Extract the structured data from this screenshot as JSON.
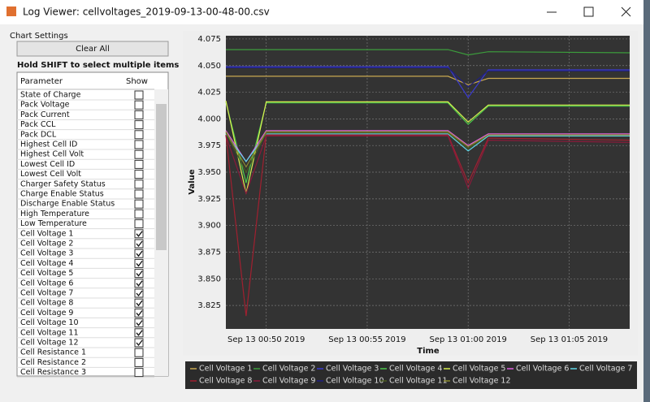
{
  "window": {
    "title": "Log Viewer: cellvoltages_2019-09-13-00-48-00.csv"
  },
  "settings": {
    "heading": "Chart Settings",
    "button": "Clear All",
    "hint": "Hold SHIFT to select multiple items",
    "columns": [
      "Parameter",
      "Show"
    ],
    "rows": [
      {
        "name": "State of Charge",
        "checked": false
      },
      {
        "name": "Pack Voltage",
        "checked": false
      },
      {
        "name": "Pack Current",
        "checked": false
      },
      {
        "name": "Pack CCL",
        "checked": false
      },
      {
        "name": "Pack DCL",
        "checked": false
      },
      {
        "name": "Highest Cell ID",
        "checked": false
      },
      {
        "name": "Highest Cell Volt",
        "checked": false
      },
      {
        "name": "Lowest Cell ID",
        "checked": false
      },
      {
        "name": "Lowest Cell Volt",
        "checked": false
      },
      {
        "name": "Charger Safety Status",
        "checked": false
      },
      {
        "name": "Charge Enable Status",
        "checked": false
      },
      {
        "name": "Discharge Enable Status",
        "checked": false
      },
      {
        "name": "High Temperature",
        "checked": false
      },
      {
        "name": "Low Temperature",
        "checked": false
      },
      {
        "name": "Cell Voltage 1",
        "checked": true
      },
      {
        "name": "Cell Voltage 2",
        "checked": true
      },
      {
        "name": "Cell Voltage 3",
        "checked": true
      },
      {
        "name": "Cell Voltage 4",
        "checked": true
      },
      {
        "name": "Cell Voltage 5",
        "checked": true
      },
      {
        "name": "Cell Voltage 6",
        "checked": true
      },
      {
        "name": "Cell Voltage 7",
        "checked": true
      },
      {
        "name": "Cell Voltage 8",
        "checked": true
      },
      {
        "name": "Cell Voltage 9",
        "checked": true
      },
      {
        "name": "Cell Voltage 10",
        "checked": true
      },
      {
        "name": "Cell Voltage 11",
        "checked": true
      },
      {
        "name": "Cell Voltage 12",
        "checked": true
      },
      {
        "name": "Cell Resistance 1",
        "checked": false
      },
      {
        "name": "Cell Resistance 2",
        "checked": false
      },
      {
        "name": "Cell Resistance 3",
        "checked": false
      }
    ]
  },
  "chart_data": {
    "type": "line",
    "x_label": "Time",
    "y_label": "Value",
    "x": [
      "2019-09-13 00:48",
      "2019-09-13 00:49",
      "2019-09-13 00:50",
      "2019-09-13 00:59",
      "2019-09-13 01:00",
      "2019-09-13 01:01",
      "2019-09-13 01:08"
    ],
    "xlim": [
      "2019-09-13 00:48",
      "2019-09-13 01:08"
    ],
    "xticks": [
      {
        "value": "2019-09-13 00:50",
        "label": "Sep 13 00:50 2019"
      },
      {
        "value": "2019-09-13 00:55",
        "label": "Sep 13 00:55 2019"
      },
      {
        "value": "2019-09-13 01:00",
        "label": "Sep 13 01:00 2019"
      },
      {
        "value": "2019-09-13 01:05",
        "label": "Sep 13 01:05 2019"
      }
    ],
    "ylim": [
      3.803,
      4.078
    ],
    "yticks": [
      3.825,
      {
        "value": 3.85,
        "label": "3.850"
      },
      3.875,
      {
        "value": 3.9,
        "label": "3.900"
      },
      3.925,
      {
        "value": 3.95,
        "label": "3.950"
      },
      3.975,
      {
        "value": 4.0,
        "label": "4.000"
      },
      4.025,
      {
        "value": 4.05,
        "label": "4.050"
      },
      4.075
    ],
    "grid": true,
    "series": [
      {
        "name": "Cell Voltage 1",
        "color": "#c8a850",
        "values": [
          4.04,
          4.04,
          4.04,
          4.04,
          4.032,
          4.038,
          4.038
        ]
      },
      {
        "name": "Cell Voltage 2",
        "color": "#3c9c3c",
        "values": [
          4.065,
          4.065,
          4.065,
          4.065,
          4.06,
          4.063,
          4.062
        ]
      },
      {
        "name": "Cell Voltage 3",
        "color": "#3a3ad0",
        "values": [
          4.049,
          4.049,
          4.049,
          4.049,
          4.02,
          4.046,
          4.046
        ]
      },
      {
        "name": "Cell Voltage 4",
        "color": "#4cc84c",
        "values": [
          4.016,
          3.94,
          4.015,
          4.015,
          3.995,
          4.012,
          4.012
        ]
      },
      {
        "name": "Cell Voltage 5",
        "color": "#d8f050",
        "values": [
          4.017,
          3.93,
          4.016,
          4.016,
          3.997,
          4.013,
          4.013
        ]
      },
      {
        "name": "Cell Voltage 6",
        "color": "#e060e0",
        "values": [
          3.989,
          3.96,
          3.989,
          3.989,
          3.975,
          3.986,
          3.986
        ]
      },
      {
        "name": "Cell Voltage 7",
        "color": "#60d8e8",
        "values": [
          3.986,
          3.96,
          3.986,
          3.986,
          3.97,
          3.984,
          3.984
        ]
      },
      {
        "name": "Cell Voltage 8",
        "color": "#a02030",
        "values": [
          3.985,
          3.815,
          3.985,
          3.985,
          3.94,
          3.982,
          3.98
        ]
      },
      {
        "name": "Cell Voltage 9",
        "color": "#8a1a3a",
        "values": [
          3.984,
          3.93,
          3.984,
          3.984,
          3.935,
          3.98,
          3.978
        ]
      },
      {
        "name": "Cell Voltage 10",
        "color": "#202080",
        "values": [
          4.048,
          4.048,
          4.048,
          4.048,
          4.03,
          4.045,
          4.045
        ]
      },
      {
        "name": "Cell Voltage 11",
        "color": "#4a5a20",
        "values": [
          3.987,
          3.95,
          3.987,
          3.987,
          3.972,
          3.985,
          3.985
        ]
      },
      {
        "name": "Cell Voltage 12",
        "color": "#8a8a30",
        "values": [
          3.988,
          3.955,
          3.988,
          3.988,
          3.974,
          3.985,
          3.985
        ]
      }
    ]
  }
}
